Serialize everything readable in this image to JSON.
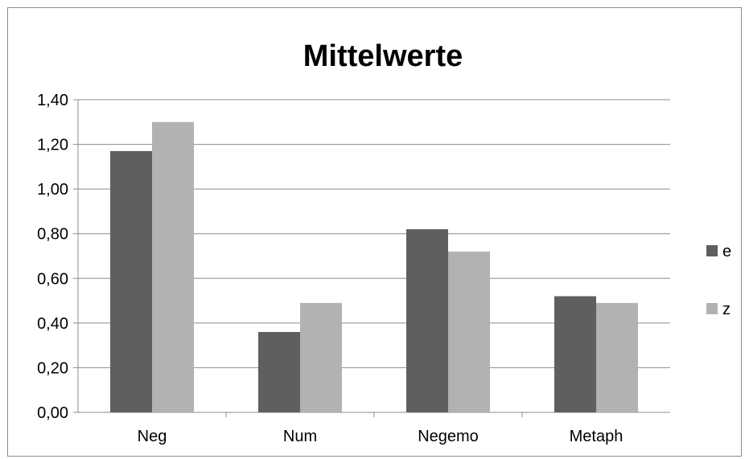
{
  "chart_data": {
    "type": "bar",
    "title": "Mittelwerte",
    "categories": [
      "Neg",
      "Num",
      "Negemo",
      "Metaph"
    ],
    "series": [
      {
        "name": "e",
        "color": "#5f5f5f",
        "values": [
          1.17,
          0.36,
          0.82,
          0.52
        ]
      },
      {
        "name": "z",
        "color": "#b2b2b2",
        "values": [
          1.3,
          0.49,
          0.72,
          0.49
        ]
      }
    ],
    "yticks": [
      "0,00",
      "0,20",
      "0,40",
      "0,60",
      "0,80",
      "1,00",
      "1,20",
      "1,40"
    ],
    "ylim": [
      0,
      1.4
    ],
    "ystep": 0.2,
    "xlabel": "",
    "ylabel": "",
    "grid": true,
    "legend_position": "right"
  }
}
